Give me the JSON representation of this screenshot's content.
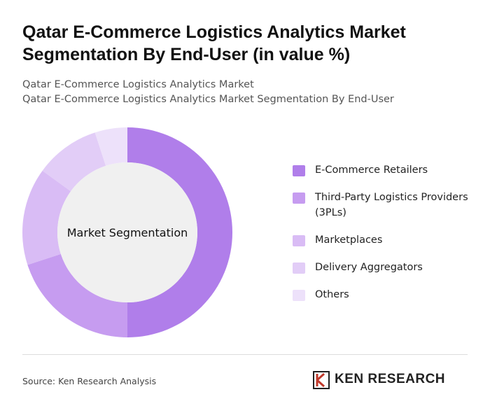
{
  "chart_data": {
    "type": "donut",
    "title": "Qatar E-Commerce Logistics Analytics Market Segmentation By End-User (in value %)",
    "subtitle": [
      "Qatar E-Commerce Logistics Analytics Market",
      "Qatar E-Commerce Logistics Analytics Market Segmentation By End-User"
    ],
    "center_label": "Market Segmentation",
    "categories": [
      "E-Commerce Retailers",
      "Third-Party Logistics Providers (3PLs)",
      "Marketplaces",
      "Delivery Aggregators",
      "Others"
    ],
    "values": [
      50,
      20,
      15,
      10,
      5
    ],
    "colors": [
      "#b07eea",
      "#c69cf0",
      "#d9bcf5",
      "#e2cdf7",
      "#ede1fa"
    ],
    "source": "Source: Ken Research Analysis",
    "logo": "KEN RESEARCH"
  }
}
